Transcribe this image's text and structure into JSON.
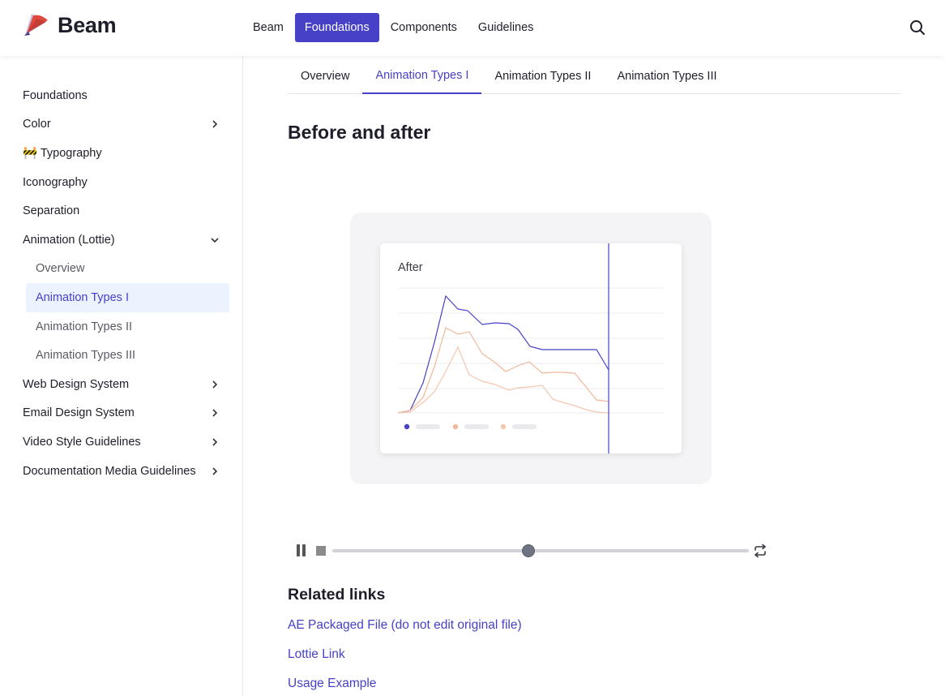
{
  "brand": {
    "name": "Beam"
  },
  "topnav": [
    {
      "label": "Beam",
      "active": false
    },
    {
      "label": "Foundations",
      "active": true
    },
    {
      "label": "Components",
      "active": false
    },
    {
      "label": "Guidelines",
      "active": false
    }
  ],
  "sidebar": {
    "items": [
      {
        "label": "Foundations",
        "chevron": "none"
      },
      {
        "label": "Color",
        "chevron": "right"
      },
      {
        "label": "🚧 Typography",
        "chevron": "none"
      },
      {
        "label": "Iconography",
        "chevron": "none"
      },
      {
        "label": "Separation",
        "chevron": "none"
      },
      {
        "label": "Animation (Lottie)",
        "chevron": "down"
      },
      {
        "label": "Overview",
        "sub": true
      },
      {
        "label": "Animation Types I",
        "sub": true,
        "active": true
      },
      {
        "label": "Animation Types II",
        "sub": true
      },
      {
        "label": "Animation Types III",
        "sub": true
      },
      {
        "label": "Web Design System",
        "chevron": "right"
      },
      {
        "label": "Email Design System",
        "chevron": "right"
      },
      {
        "label": "Video Style Guidelines",
        "chevron": "right"
      },
      {
        "label": "Documentation Media Guidelines",
        "chevron": "right"
      }
    ]
  },
  "tabs": [
    {
      "label": "Overview",
      "active": false
    },
    {
      "label": "Animation Types I",
      "active": true
    },
    {
      "label": "Animation Types II",
      "active": false
    },
    {
      "label": "Animation Types III",
      "active": false
    }
  ],
  "section": {
    "title": "Before and after"
  },
  "animation": {
    "label": "After",
    "colors": {
      "primary": "#4641c7",
      "secondary": "#f0b89a",
      "tertiary": "#f5c7b0"
    },
    "progress": 0.47
  },
  "related": {
    "title": "Related links",
    "links": [
      {
        "label": "AE Packaged File (do not edit original file)"
      },
      {
        "label": "Lottie Link"
      },
      {
        "label": "Usage Example"
      }
    ]
  },
  "colors": {
    "accent": "#4641c7",
    "active_bg": "#edf2ff"
  }
}
